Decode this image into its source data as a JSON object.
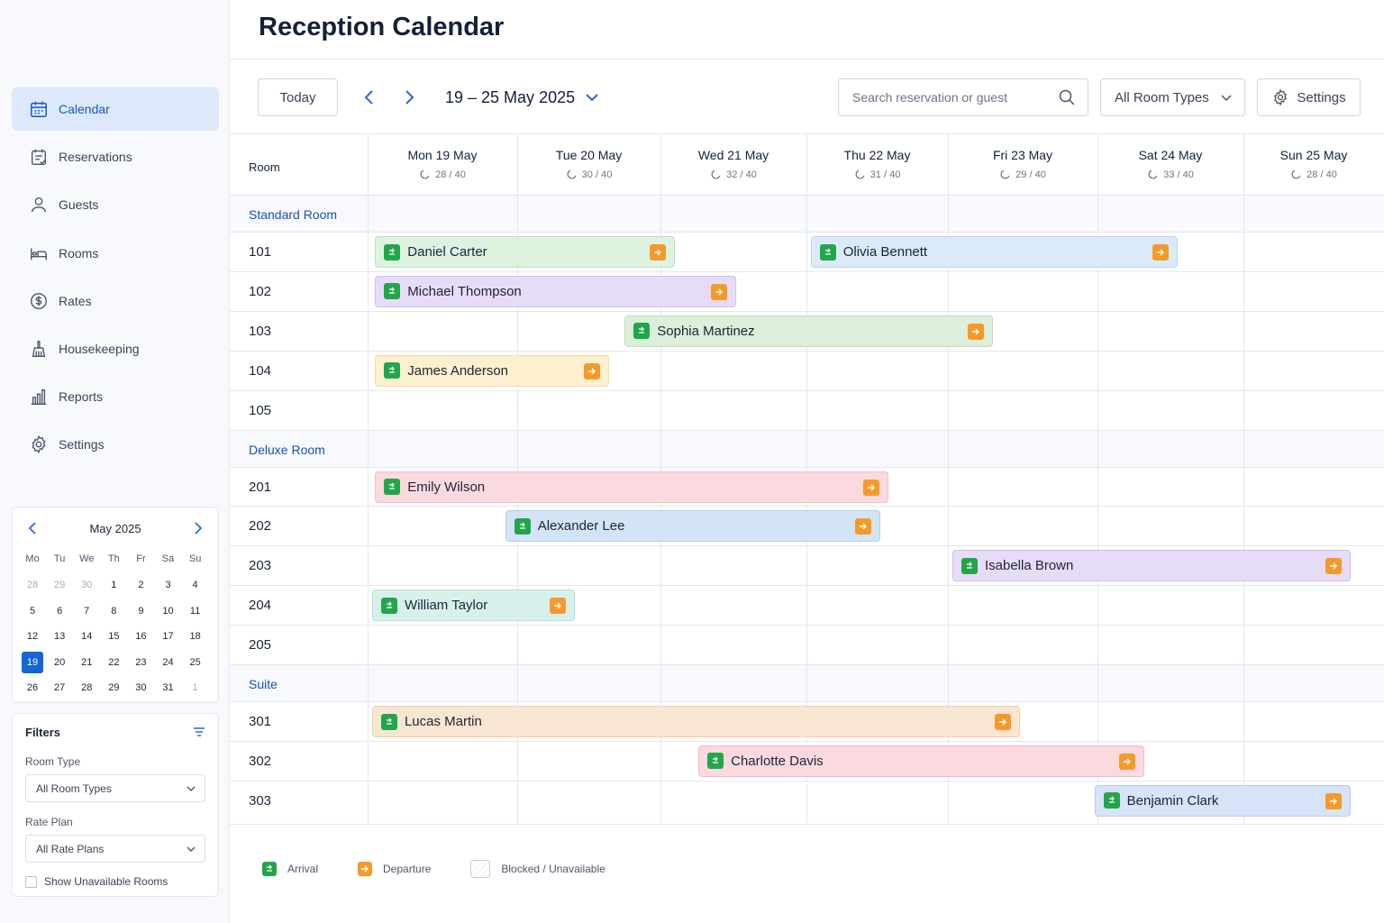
{
  "page_title": "Reception Calendar",
  "sidebar": {
    "items": [
      {
        "label": "Calendar",
        "icon": "calendar-icon",
        "active": true
      },
      {
        "label": "Reservations",
        "icon": "reservations-icon"
      },
      {
        "label": "Guests",
        "icon": "user-icon"
      },
      {
        "label": "Rooms",
        "icon": "bed-icon"
      },
      {
        "label": "Rates",
        "icon": "dollar-icon"
      },
      {
        "label": "Housekeeping",
        "icon": "broom-icon"
      },
      {
        "label": "Reports",
        "icon": "bar-chart-icon"
      },
      {
        "label": "Settings",
        "icon": "gear-icon"
      }
    ]
  },
  "mini_calendar": {
    "title": "May 2025",
    "weekdays": [
      "Mo",
      "Tu",
      "We",
      "Th",
      "Fr",
      "Sa",
      "Su"
    ],
    "days": [
      {
        "d": "28",
        "muted": true
      },
      {
        "d": "29",
        "muted": true
      },
      {
        "d": "30",
        "muted": true
      },
      {
        "d": "1"
      },
      {
        "d": "2"
      },
      {
        "d": "3"
      },
      {
        "d": "4"
      },
      {
        "d": "5"
      },
      {
        "d": "6"
      },
      {
        "d": "7"
      },
      {
        "d": "8"
      },
      {
        "d": "9"
      },
      {
        "d": "10"
      },
      {
        "d": "11"
      },
      {
        "d": "12"
      },
      {
        "d": "13"
      },
      {
        "d": "14"
      },
      {
        "d": "15"
      },
      {
        "d": "16"
      },
      {
        "d": "17"
      },
      {
        "d": "18"
      },
      {
        "d": "19",
        "selected": true
      },
      {
        "d": "20"
      },
      {
        "d": "21"
      },
      {
        "d": "22"
      },
      {
        "d": "23"
      },
      {
        "d": "24"
      },
      {
        "d": "25"
      },
      {
        "d": "26"
      },
      {
        "d": "27"
      },
      {
        "d": "28"
      },
      {
        "d": "29"
      },
      {
        "d": "30"
      },
      {
        "d": "31"
      },
      {
        "d": "1",
        "muted": true
      }
    ]
  },
  "filters": {
    "title": "Filters",
    "room_type_label": "Room Type",
    "room_type_value": "All Room Types",
    "rate_plan_label": "Rate Plan",
    "rate_plan_value": "All Rate Plans",
    "show_unavailable_label": "Show Unavailable Rooms",
    "show_unavailable_checked": false
  },
  "toolbar": {
    "today_label": "Today",
    "range_label": "19 – 25 May 2025",
    "search_placeholder": "Search reservation or guest",
    "room_types_label": "All Room Types",
    "settings_label": "Settings"
  },
  "calendar": {
    "room_header": "Room",
    "days": [
      {
        "label": "Mon 19 May",
        "occupancy": "28 / 40"
      },
      {
        "label": "Tue 20 May",
        "occupancy": "30 / 40"
      },
      {
        "label": "Wed 21 May",
        "occupancy": "32 / 40"
      },
      {
        "label": "Thu 22 May",
        "occupancy": "31 / 40"
      },
      {
        "label": "Fri 23 May",
        "occupancy": "29 / 40"
      },
      {
        "label": "Sat 24 May",
        "occupancy": "33 / 40"
      },
      {
        "label": "Sun 25 May",
        "occupancy": "28 / 40"
      }
    ],
    "rows": [
      {
        "type": "group",
        "label": "Standard Room"
      },
      {
        "type": "room",
        "label": "101"
      },
      {
        "type": "room",
        "label": "102"
      },
      {
        "type": "room",
        "label": "103"
      },
      {
        "type": "room",
        "label": "104"
      },
      {
        "type": "room",
        "label": "105"
      },
      {
        "type": "group",
        "label": "Deluxe Room"
      },
      {
        "type": "room",
        "label": "201"
      },
      {
        "type": "room",
        "label": "202"
      },
      {
        "type": "room",
        "label": "203"
      },
      {
        "type": "room",
        "label": "204"
      },
      {
        "type": "room",
        "label": "205"
      },
      {
        "type": "group",
        "label": "Suite"
      },
      {
        "type": "room",
        "label": "301"
      },
      {
        "type": "room",
        "label": "302"
      },
      {
        "type": "room",
        "label": "303"
      }
    ],
    "reservations": [
      {
        "guest": "Daniel Carter",
        "room": "101",
        "start_day": 0.05,
        "end_day": 2.1,
        "color": "#ddf3e0",
        "border": "#b9e2c0"
      },
      {
        "guest": "Olivia Bennett",
        "room": "101",
        "start_day": 3.03,
        "end_day": 5.55,
        "color": "#dbeaf8",
        "border": "#bad5ef"
      },
      {
        "guest": "Michael Thompson",
        "room": "102",
        "start_day": 0.05,
        "end_day": 2.52,
        "color": "#e7dcf8",
        "border": "#cfbdf0"
      },
      {
        "guest": "Sophia Martinez",
        "room": "103",
        "start_day": 1.75,
        "end_day": 4.3,
        "color": "#dcefda",
        "border": "#bfdfbc"
      },
      {
        "guest": "James Anderson",
        "room": "104",
        "start_day": 0.05,
        "end_day": 1.64,
        "color": "#fcf0cf",
        "border": "#f0dca8"
      },
      {
        "guest": "Emily Wilson",
        "room": "201",
        "start_day": 0.05,
        "end_day": 3.58,
        "color": "#fad9df",
        "border": "#f2bdc7"
      },
      {
        "guest": "Alexander Lee",
        "room": "202",
        "start_day": 0.92,
        "end_day": 3.52,
        "color": "#d3e4f6",
        "border": "#b3cfee"
      },
      {
        "guest": "Isabella Brown",
        "room": "203",
        "start_day": 4.03,
        "end_day": 6.76,
        "color": "#e7dcf8",
        "border": "#cfbdf0"
      },
      {
        "guest": "William Taylor",
        "room": "204",
        "start_day": 0.03,
        "end_day": 1.4,
        "color": "#d8f0ec",
        "border": "#b4e0d8"
      },
      {
        "guest": "Lucas Martin",
        "room": "301",
        "start_day": 0.03,
        "end_day": 4.48,
        "color": "#f9e6d2",
        "border": "#efcfad"
      },
      {
        "guest": "Charlotte Davis",
        "room": "302",
        "start_day": 2.26,
        "end_day": 5.32,
        "color": "#fbd9de",
        "border": "#f2bcc5"
      },
      {
        "guest": "Benjamin Clark",
        "room": "303",
        "start_day": 4.98,
        "end_day": 6.76,
        "color": "#d6e3f8",
        "border": "#b6cdf0"
      }
    ]
  },
  "legend": {
    "arrival": "Arrival",
    "departure": "Departure",
    "blocked": "Blocked / Unavailable"
  },
  "colors": {
    "accent": "#1565d8",
    "arrival": "#22a64a",
    "departure": "#f59a2a",
    "group_text": "#1a4fb5"
  }
}
